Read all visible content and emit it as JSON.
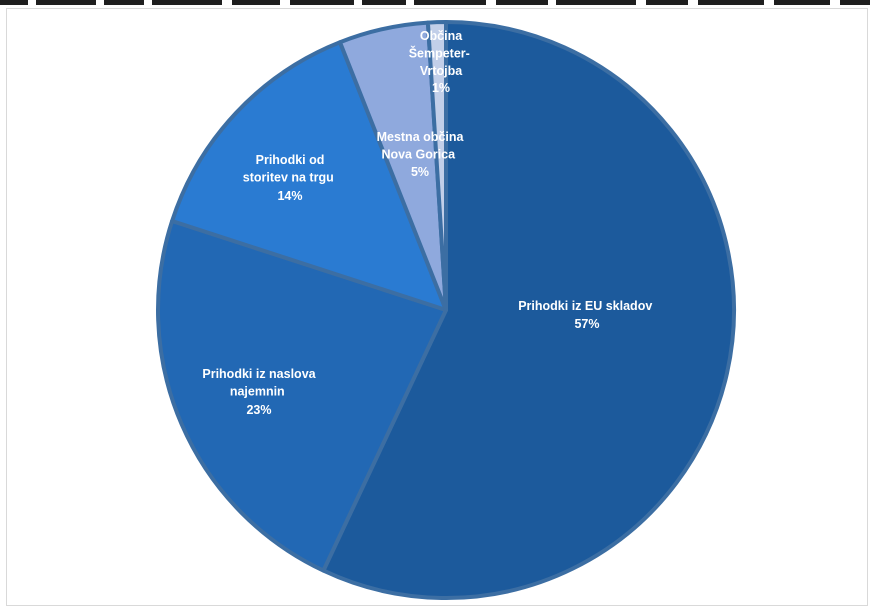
{
  "chart_data": {
    "type": "pie",
    "colors": {
      "border": "#3c6ea3",
      "label": "#ffffff"
    },
    "slices": [
      {
        "label": "Prihodki iz EU skladov",
        "percent": "57%",
        "value": 57,
        "color": "#1c5a9c"
      },
      {
        "label": "Prihodki iz naslova najemnin",
        "percent": "23%",
        "value": 23,
        "color": "#2268b4"
      },
      {
        "label": "Prihodki od storitev na trgu",
        "percent": "14%",
        "value": 14,
        "color": "#2a7bd2"
      },
      {
        "label": "Mestna občina Nova Gorica",
        "percent": "5%",
        "value": 5,
        "color": "#8fa9dd"
      },
      {
        "label": "Občina Šempeter-Vrtojba",
        "percent": "1%",
        "value": 1,
        "color": "#c2cfe9"
      }
    ]
  }
}
